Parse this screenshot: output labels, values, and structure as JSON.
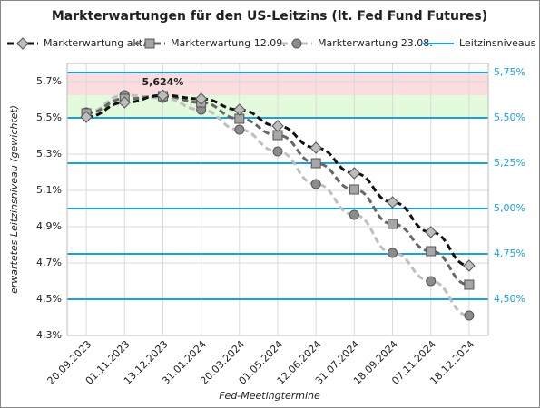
{
  "chart_data": {
    "type": "line",
    "title": "Markterwartungen für den US-Leitzins (lt. Fed Fund Futures)",
    "x_label": "Fed-Meetingtermine",
    "y_label": "erwartetes Leitzinsniveau (gewichtet)",
    "categories": [
      "20.09.2023",
      "01.11.2023",
      "13.12.2023",
      "31.01.2024",
      "20.03.2024",
      "01.05.2024",
      "12.06.2024",
      "31.07.2024",
      "18.09.2024",
      "07.11.2024",
      "18.12.2024"
    ],
    "series": [
      {
        "name": "Markterwartung akt.",
        "color": "#111111",
        "marker": "diamond",
        "marker_color": "#bdbdbd",
        "values": [
          5.505,
          5.585,
          5.624,
          5.605,
          5.545,
          5.455,
          5.335,
          5.195,
          5.035,
          4.87,
          4.685
        ],
        "value_labels": [
          null,
          null,
          "5,624%",
          null,
          null,
          null,
          null,
          null,
          null,
          null,
          null
        ]
      },
      {
        "name": "Markterwartung 12.09.",
        "color": "#666666",
        "marker": "square",
        "marker_color": "#a6a6a6",
        "values": [
          5.525,
          5.605,
          5.62,
          5.585,
          5.495,
          5.405,
          5.25,
          5.105,
          4.915,
          4.765,
          4.58
        ]
      },
      {
        "name": "Markterwartung 23.08.",
        "color": "#bfbfbf",
        "marker": "circle",
        "marker_color": "#8c8c8c",
        "values": [
          5.53,
          5.625,
          5.61,
          5.545,
          5.435,
          5.315,
          5.135,
          4.965,
          4.755,
          4.6,
          4.41
        ]
      },
      {
        "name": "Leitzinsniveaus",
        "color": "#1ba1d6",
        "axis": "y2",
        "marker": "hline"
      }
    ],
    "bands": [
      {
        "from": 5.5,
        "to": 5.625,
        "color": "#e3fbdc"
      },
      {
        "from": 5.625,
        "to": 5.75,
        "color": "#fbdcdf"
      }
    ],
    "ylim": [
      4.3,
      5.8
    ],
    "yticks": [
      {
        "value": 4.3,
        "label": "4,3%"
      },
      {
        "value": 4.5,
        "label": "4,5%"
      },
      {
        "value": 4.7,
        "label": "4,7%"
      },
      {
        "value": 4.9,
        "label": "4,9%"
      },
      {
        "value": 5.1,
        "label": "5,1%"
      },
      {
        "value": 5.3,
        "label": "5,3%"
      },
      {
        "value": 5.5,
        "label": "5,5%"
      },
      {
        "value": 5.7,
        "label": "5,7%"
      }
    ],
    "y2lim": [
      4.3,
      5.8
    ],
    "y2ticks": [
      {
        "value": 4.5,
        "label": "4,50%"
      },
      {
        "value": 4.75,
        "label": "4,75%"
      },
      {
        "value": 5.0,
        "label": "5,00%"
      },
      {
        "value": 5.25,
        "label": "5,25%"
      },
      {
        "value": 5.5,
        "label": "5,50%"
      },
      {
        "value": 5.75,
        "label": "5,75%"
      }
    ],
    "grid": true,
    "legend": "top"
  }
}
